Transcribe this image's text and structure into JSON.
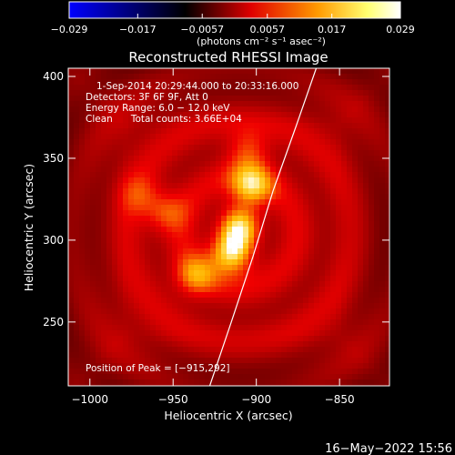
{
  "chart_data": {
    "type": "heatmap",
    "title": "Reconstructed RHESSI Image",
    "xlabel": "Heliocentric X (arcsec)",
    "ylabel": "Heliocentric Y (arcsec)",
    "xlim": [
      -1013,
      -820
    ],
    "ylim": [
      211,
      405
    ],
    "x_ticks": [
      -1000,
      -950,
      -900,
      -850
    ],
    "y_ticks": [
      250,
      300,
      350,
      400
    ],
    "x_tick_labels": [
      "−1000",
      "−950",
      "−900",
      "−850"
    ],
    "y_tick_labels": [
      "250",
      "300",
      "350",
      "400"
    ],
    "colorbar": {
      "ticks": [
        -0.029,
        -0.017,
        -0.0057,
        0.0057,
        0.017,
        0.029
      ],
      "tick_labels": [
        "−0.029",
        "−0.017",
        "−0.0057",
        "0.0057",
        "0.017",
        "0.029"
      ],
      "range": [
        -0.029,
        0.029
      ],
      "unit_label": "(photons cm⁻² s⁻¹ asec⁻²)",
      "colors": [
        "#0000ff",
        "#000000",
        "#ff0000",
        "#ffaa00",
        "#ffff80",
        "#ffffff"
      ]
    },
    "annotations": {
      "time": "1-Sep-2014 20:29:44.000 to 20:33:16.000",
      "detectors": "Detectors: 3F 6F 9F, Att 0",
      "energy": "Energy Range: 6.0 − 12.0 keV",
      "clean": "Clean      Total counts: 3.66E+04",
      "peak": "Position of Peak = [−915,292]"
    },
    "peak": [
      -915,
      292
    ],
    "sources": [
      {
        "x": -915,
        "y": 292,
        "amp": 1.0
      },
      {
        "x": -903,
        "y": 333,
        "amp": 0.8
      },
      {
        "x": -910,
        "y": 310,
        "amp": 0.65
      },
      {
        "x": -937,
        "y": 278,
        "amp": 0.55
      },
      {
        "x": -905,
        "y": 355,
        "amp": 0.45
      },
      {
        "x": -955,
        "y": 317,
        "amp": 0.45
      },
      {
        "x": -970,
        "y": 328,
        "amp": 0.3
      }
    ],
    "limb_curve": [
      [
        -928,
        211
      ],
      [
        -915,
        250
      ],
      [
        -902,
        290
      ],
      [
        -890,
        330
      ],
      [
        -876,
        370
      ],
      [
        -864,
        405
      ]
    ],
    "footer": "16−May−2022 15:56"
  }
}
